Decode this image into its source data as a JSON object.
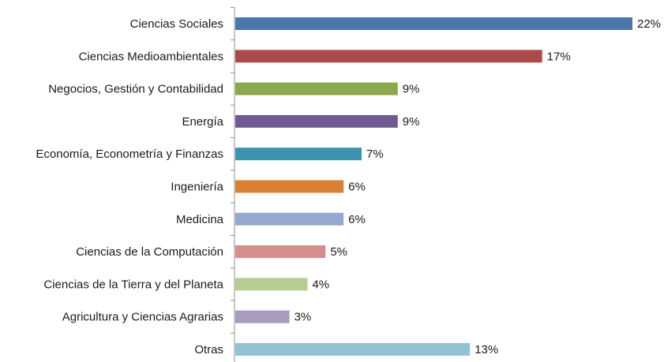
{
  "chart_data": {
    "type": "bar",
    "orientation": "horizontal",
    "categories": [
      "Ciencias Sociales",
      "Ciencias Medioambientales",
      "Negocios, Gestión y Contabilidad",
      "Energía",
      "Economía, Econometría y Finanzas",
      "Ingeniería",
      "Medicina",
      "Ciencias de la Computación",
      "Ciencias de la Tierra y del Planeta",
      "Agricultura y Ciencias Agrarias",
      "Otras"
    ],
    "values": [
      22,
      17,
      9,
      9,
      7,
      6,
      6,
      5,
      4,
      3,
      13
    ],
    "value_labels": [
      "22%",
      "17%",
      "9%",
      "9%",
      "7%",
      "6%",
      "6%",
      "5%",
      "4%",
      "3%",
      "13%"
    ],
    "colors": [
      "#4a76a8",
      "#aa4a4a",
      "#8ba84c",
      "#705a91",
      "#3b95af",
      "#d98034",
      "#94a9cf",
      "#d48f8d",
      "#b7cc92",
      "#a89bc1",
      "#92c2d4"
    ],
    "unit": "%",
    "title": "",
    "xlabel": "",
    "ylabel": "",
    "xlim": [
      0,
      22
    ],
    "grid": false,
    "legend": "none"
  }
}
